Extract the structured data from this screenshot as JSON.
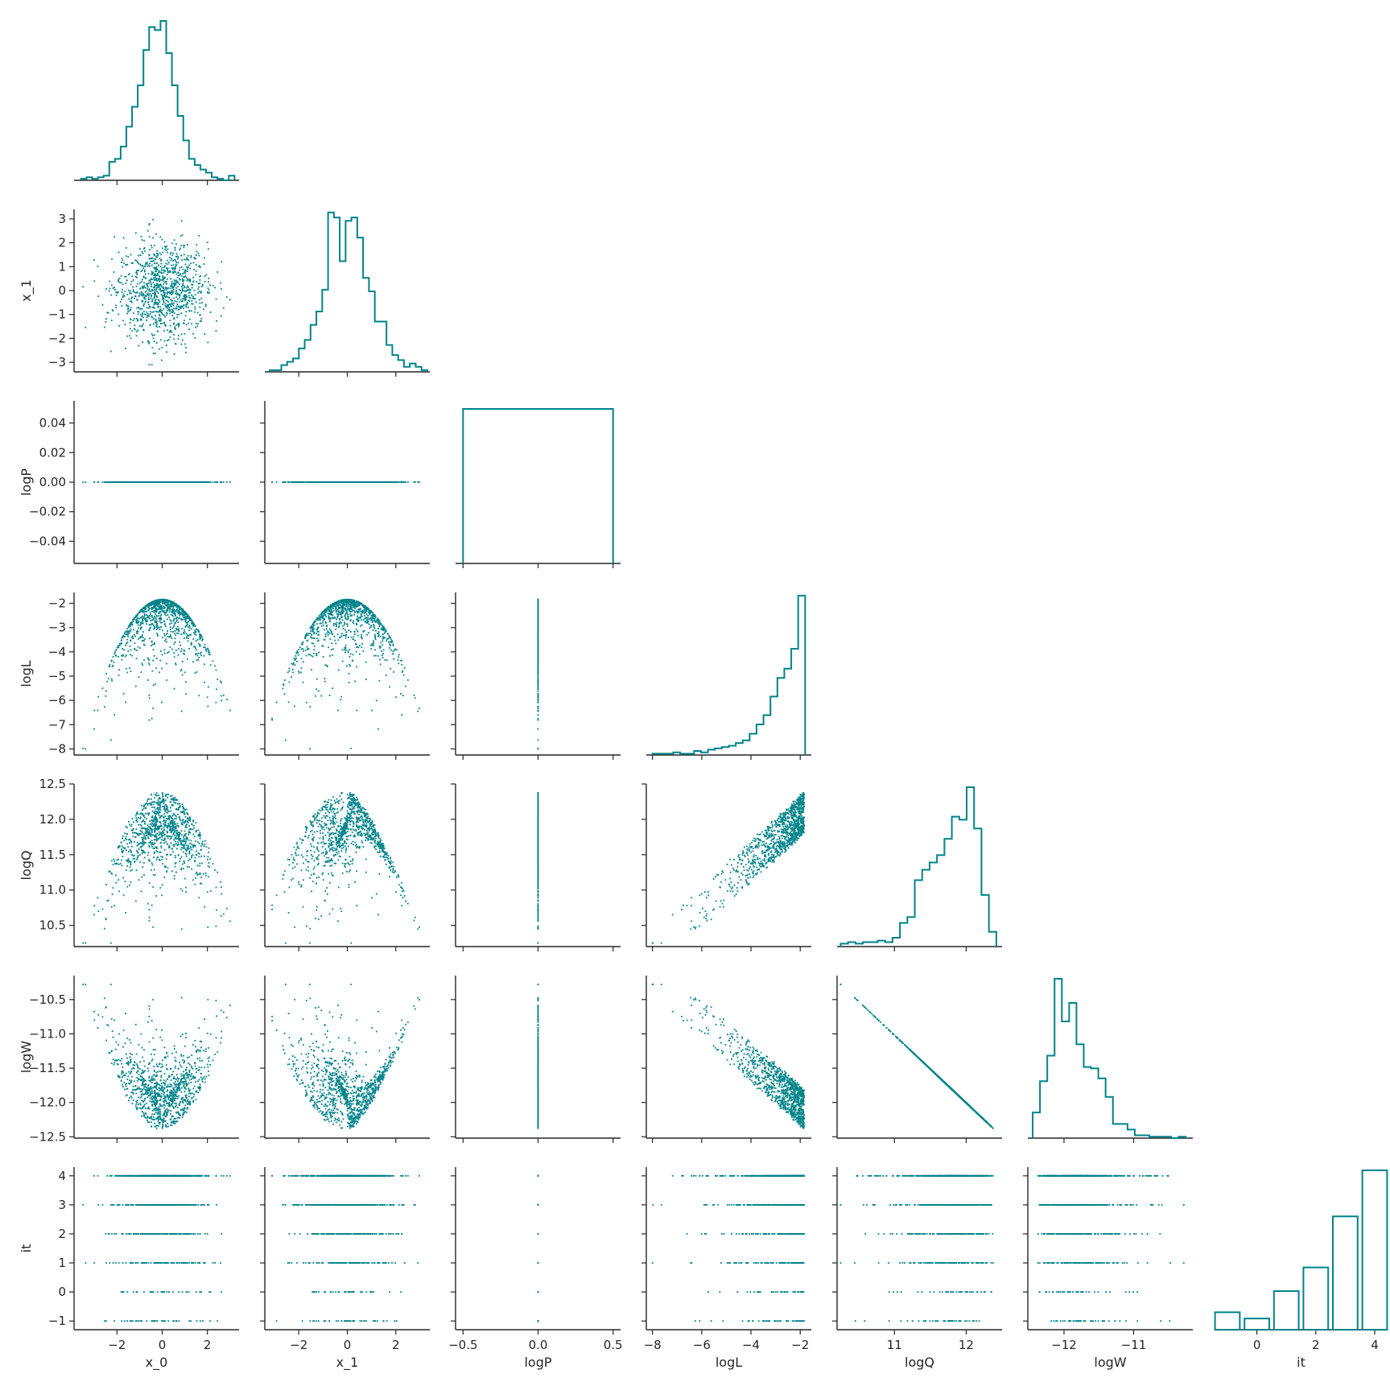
{
  "figure": {
    "type": "pairplot-corner",
    "color": "#00838a",
    "background": "#ffffff",
    "axis_color": "#262626"
  },
  "chart_data": {
    "type": "scatter",
    "layout": "corner pair plot (lower triangle scatter, diagonal step histograms)",
    "variables": [
      "x_0",
      "x_1",
      "logP",
      "logL",
      "logQ",
      "logW",
      "it"
    ],
    "axes": {
      "x_0": {
        "label": "x_0",
        "range": [
          -3.9,
          3.4
        ],
        "ticks": [
          -2,
          0,
          2
        ],
        "tick_labels": [
          "−2",
          "0",
          "2"
        ]
      },
      "x_1": {
        "label": "x_1",
        "range": [
          -3.4,
          3.4
        ],
        "ticks": [
          -3,
          -2,
          -1,
          0,
          1,
          2,
          3
        ],
        "tick_labels": [
          "−3",
          "−2",
          "−1",
          "0",
          "1",
          "2",
          "3"
        ],
        "xtick_labels": [
          "−2",
          "0",
          "2"
        ],
        "xticks": [
          -2,
          0,
          2
        ]
      },
      "logP": {
        "label": "logP",
        "range": [
          -0.055,
          0.055
        ],
        "ticks": [
          -0.04,
          -0.02,
          0,
          0.02,
          0.04
        ],
        "tick_labels": [
          "−0.04",
          "−0.02",
          "0.00",
          "0.02",
          "0.04"
        ],
        "xticks": [
          -0.5,
          0,
          0.5
        ],
        "xtick_labels": [
          "−0.5",
          "0.0",
          "0.5"
        ],
        "xrange": [
          -0.55,
          0.55
        ]
      },
      "logL": {
        "label": "logL",
        "range": [
          -8.25,
          -1.55
        ],
        "ticks": [
          -8,
          -7,
          -6,
          -5,
          -4,
          -3,
          -2
        ],
        "tick_labels": [
          "−8",
          "−7",
          "−6",
          "−5",
          "−4",
          "−3",
          "−2"
        ],
        "xticks": [
          -8,
          -6,
          -4,
          -2
        ],
        "xtick_labels": [
          "−8",
          "−6",
          "−4",
          "−2"
        ]
      },
      "logQ": {
        "label": "logQ",
        "range": [
          10.2,
          12.5
        ],
        "ticks": [
          10.5,
          11.0,
          11.5,
          12.0,
          12.5
        ],
        "tick_labels": [
          "10.5",
          "11.0",
          "11.5",
          "12.0",
          "12.5"
        ],
        "xticks": [
          11,
          12
        ],
        "xtick_labels": [
          "11",
          "12"
        ]
      },
      "logW": {
        "label": "logW",
        "range": [
          -12.52,
          -10.15
        ],
        "ticks": [
          -12.5,
          -12.0,
          -11.5,
          -11.0,
          -10.5
        ],
        "tick_labels": [
          "−12.5",
          "−12.0",
          "−11.5",
          "−11.0",
          "−10.5"
        ],
        "xticks": [
          -12,
          -11
        ],
        "xtick_labels": [
          "−12",
          "−11"
        ]
      },
      "it": {
        "label": "it",
        "range": [
          -1.3,
          4.3
        ],
        "ticks": [
          -1,
          0,
          1,
          2,
          3,
          4
        ],
        "tick_labels": [
          "−1",
          "0",
          "1",
          "2",
          "3",
          "4"
        ],
        "xticks": [
          0,
          2,
          4
        ],
        "xtick_labels": [
          "0",
          "2",
          "4"
        ]
      }
    },
    "histograms": {
      "x_0": {
        "bin_edges_range": [
          -3.6,
          3.2
        ],
        "counts": [
          1,
          2,
          1,
          2,
          3,
          12,
          14,
          22,
          35,
          48,
          62,
          85,
          100,
          98,
          104,
          83,
          62,
          42,
          26,
          14,
          10,
          7,
          5,
          2,
          1,
          0,
          3
        ]
      },
      "x_1": {
        "bin_edges_range": [
          -3.2,
          3.3
        ],
        "counts": [
          1,
          1,
          4,
          6,
          8,
          14,
          19,
          28,
          36,
          49,
          95,
          92,
          66,
          90,
          92,
          80,
          56,
          48,
          30,
          30,
          16,
          10,
          7,
          3,
          5,
          3,
          1
        ]
      },
      "logP": {
        "bin_edges_range": [
          -0.5,
          0.5
        ],
        "counts": [
          1
        ]
      },
      "logL": {
        "bin_edges_range": [
          -8.0,
          -1.8
        ],
        "counts": [
          1,
          1,
          1,
          2,
          1,
          1,
          3,
          2,
          4,
          5,
          6,
          7,
          9,
          11,
          16,
          23,
          30,
          44,
          58,
          65,
          80,
          120
        ]
      },
      "logQ": {
        "bin_edges_range": [
          10.25,
          12.42
        ],
        "counts": [
          2,
          3,
          2,
          3,
          3,
          4,
          3,
          6,
          16,
          20,
          45,
          52,
          57,
          62,
          73,
          88,
          86,
          108,
          80,
          35,
          10
        ]
      },
      "logW": {
        "bin_edges_range": [
          -12.45,
          -10.25
        ],
        "counts": [
          18,
          40,
          58,
          112,
          82,
          95,
          66,
          50,
          49,
          42,
          29,
          10,
          10,
          6,
          2,
          2,
          1,
          1,
          1,
          0,
          1
        ]
      },
      "it": {
        "bins": [
          -1,
          0,
          1,
          2,
          3,
          4
        ],
        "counts": [
          70,
          45,
          155,
          250,
          455,
          640
        ]
      }
    },
    "scatter_note": "Each lower-triangle panel plots one variable against another for every sample; logP is constant 0; it takes integer values -1..4."
  }
}
